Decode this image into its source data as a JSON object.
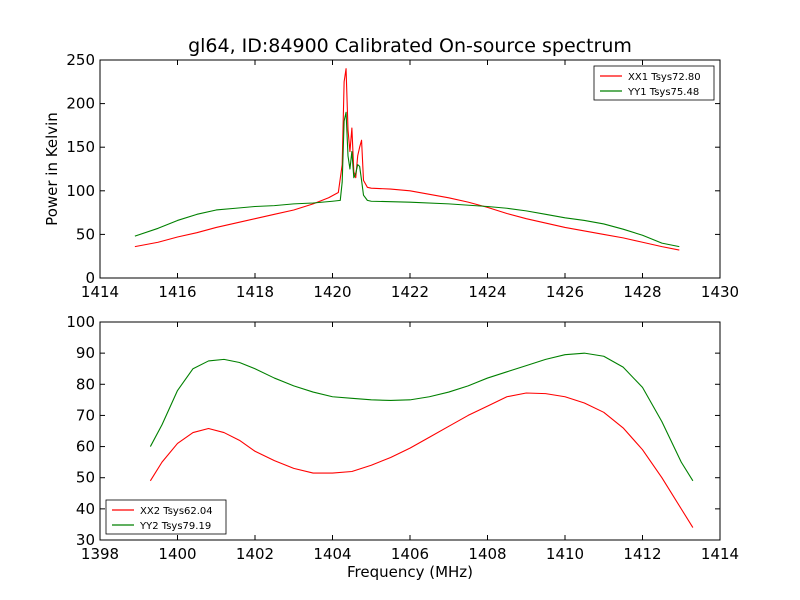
{
  "figure": {
    "title": "gl64, ID:84900 Calibrated On-source spectrum"
  },
  "chart_data": [
    {
      "type": "line",
      "title": "gl64, ID:84900 Calibrated On-source spectrum",
      "xlabel": "",
      "ylabel": "Power in Kelvin",
      "xlim": [
        1414,
        1430
      ],
      "ylim": [
        0,
        250
      ],
      "xticks": [
        1414,
        1416,
        1418,
        1420,
        1422,
        1424,
        1426,
        1428,
        1430
      ],
      "yticks": [
        0,
        50,
        100,
        150,
        200,
        250
      ],
      "legend_position": "top-right",
      "grid": false,
      "series": [
        {
          "name": "XX1 Tsys72.80",
          "color": "#ff0000",
          "points": [
            [
              1414.9,
              36
            ],
            [
              1415.5,
              41
            ],
            [
              1416.0,
              47
            ],
            [
              1416.5,
              52
            ],
            [
              1417.0,
              58
            ],
            [
              1417.5,
              63
            ],
            [
              1418.0,
              68
            ],
            [
              1418.5,
              73
            ],
            [
              1419.0,
              78
            ],
            [
              1419.5,
              85
            ],
            [
              1419.9,
              92
            ],
            [
              1420.15,
              98
            ],
            [
              1420.25,
              130
            ],
            [
              1420.3,
              225
            ],
            [
              1420.35,
              240
            ],
            [
              1420.4,
              170
            ],
            [
              1420.45,
              145
            ],
            [
              1420.5,
              172
            ],
            [
              1420.55,
              122
            ],
            [
              1420.6,
              115
            ],
            [
              1420.65,
              140
            ],
            [
              1420.7,
              150
            ],
            [
              1420.75,
              158
            ],
            [
              1420.8,
              112
            ],
            [
              1420.9,
              104
            ],
            [
              1421.0,
              103
            ],
            [
              1421.5,
              102
            ],
            [
              1422.0,
              100
            ],
            [
              1422.5,
              96
            ],
            [
              1423.0,
              92
            ],
            [
              1423.5,
              87
            ],
            [
              1424.0,
              81
            ],
            [
              1424.5,
              74
            ],
            [
              1425.0,
              68
            ],
            [
              1425.5,
              63
            ],
            [
              1426.0,
              58
            ],
            [
              1426.5,
              54
            ],
            [
              1427.0,
              50
            ],
            [
              1427.5,
              46
            ],
            [
              1428.0,
              41
            ],
            [
              1428.5,
              36
            ],
            [
              1428.95,
              32
            ]
          ]
        },
        {
          "name": "YY1 Tsys75.48",
          "color": "#008000",
          "points": [
            [
              1414.9,
              48
            ],
            [
              1415.5,
              57
            ],
            [
              1416.0,
              66
            ],
            [
              1416.5,
              73
            ],
            [
              1417.0,
              78
            ],
            [
              1417.5,
              80
            ],
            [
              1418.0,
              82
            ],
            [
              1418.5,
              83
            ],
            [
              1419.0,
              85
            ],
            [
              1419.5,
              86
            ],
            [
              1420.0,
              88
            ],
            [
              1420.2,
              89
            ],
            [
              1420.25,
              110
            ],
            [
              1420.3,
              180
            ],
            [
              1420.35,
              190
            ],
            [
              1420.4,
              140
            ],
            [
              1420.45,
              125
            ],
            [
              1420.5,
              145
            ],
            [
              1420.55,
              115
            ],
            [
              1420.6,
              120
            ],
            [
              1420.65,
              130
            ],
            [
              1420.7,
              128
            ],
            [
              1420.75,
              112
            ],
            [
              1420.8,
              95
            ],
            [
              1420.9,
              89
            ],
            [
              1421.0,
              88
            ],
            [
              1422.0,
              87
            ],
            [
              1423.0,
              85
            ],
            [
              1424.0,
              82
            ],
            [
              1424.5,
              80
            ],
            [
              1425.0,
              77
            ],
            [
              1425.5,
              73
            ],
            [
              1426.0,
              69
            ],
            [
              1426.5,
              66
            ],
            [
              1427.0,
              62
            ],
            [
              1427.5,
              56
            ],
            [
              1428.0,
              49
            ],
            [
              1428.5,
              40
            ],
            [
              1428.95,
              36
            ]
          ]
        }
      ]
    },
    {
      "type": "line",
      "title": "",
      "xlabel": "Frequency (MHz)",
      "ylabel": "",
      "xlim": [
        1398,
        1414
      ],
      "ylim": [
        30,
        100
      ],
      "xticks": [
        1398,
        1400,
        1402,
        1404,
        1406,
        1408,
        1410,
        1412,
        1414
      ],
      "yticks": [
        30,
        40,
        50,
        60,
        70,
        80,
        90,
        100
      ],
      "legend_position": "lower-left",
      "grid": false,
      "series": [
        {
          "name": "XX2 Tsys62.04",
          "color": "#ff0000",
          "points": [
            [
              1399.3,
              49
            ],
            [
              1399.6,
              55
            ],
            [
              1400.0,
              61
            ],
            [
              1400.4,
              64.5
            ],
            [
              1400.8,
              65.8
            ],
            [
              1401.2,
              64.5
            ],
            [
              1401.6,
              62
            ],
            [
              1402.0,
              58.5
            ],
            [
              1402.5,
              55.5
            ],
            [
              1403.0,
              53
            ],
            [
              1403.5,
              51.5
            ],
            [
              1404.0,
              51.5
            ],
            [
              1404.5,
              52
            ],
            [
              1405.0,
              54
            ],
            [
              1405.5,
              56.5
            ],
            [
              1406.0,
              59.5
            ],
            [
              1406.5,
              63
            ],
            [
              1407.0,
              66.5
            ],
            [
              1407.5,
              70
            ],
            [
              1408.0,
              73
            ],
            [
              1408.5,
              76
            ],
            [
              1409.0,
              77.2
            ],
            [
              1409.5,
              77
            ],
            [
              1410.0,
              76
            ],
            [
              1410.5,
              74
            ],
            [
              1411.0,
              71
            ],
            [
              1411.5,
              66
            ],
            [
              1412.0,
              59
            ],
            [
              1412.5,
              50
            ],
            [
              1413.0,
              40
            ],
            [
              1413.3,
              34
            ]
          ]
        },
        {
          "name": "YY2 Tsys79.19",
          "color": "#008000",
          "points": [
            [
              1399.3,
              60
            ],
            [
              1399.6,
              67
            ],
            [
              1400.0,
              78
            ],
            [
              1400.4,
              85
            ],
            [
              1400.8,
              87.5
            ],
            [
              1401.2,
              88
            ],
            [
              1401.6,
              87
            ],
            [
              1402.0,
              85
            ],
            [
              1402.5,
              82
            ],
            [
              1403.0,
              79.5
            ],
            [
              1403.5,
              77.5
            ],
            [
              1404.0,
              76
            ],
            [
              1404.5,
              75.5
            ],
            [
              1405.0,
              75
            ],
            [
              1405.5,
              74.8
            ],
            [
              1406.0,
              75
            ],
            [
              1406.5,
              76
            ],
            [
              1407.0,
              77.5
            ],
            [
              1407.5,
              79.5
            ],
            [
              1408.0,
              82
            ],
            [
              1408.5,
              84
            ],
            [
              1409.0,
              86
            ],
            [
              1409.5,
              88
            ],
            [
              1410.0,
              89.5
            ],
            [
              1410.5,
              90
            ],
            [
              1411.0,
              89
            ],
            [
              1411.5,
              85.5
            ],
            [
              1412.0,
              79
            ],
            [
              1412.5,
              68
            ],
            [
              1413.0,
              55
            ],
            [
              1413.3,
              49
            ]
          ]
        }
      ]
    }
  ]
}
